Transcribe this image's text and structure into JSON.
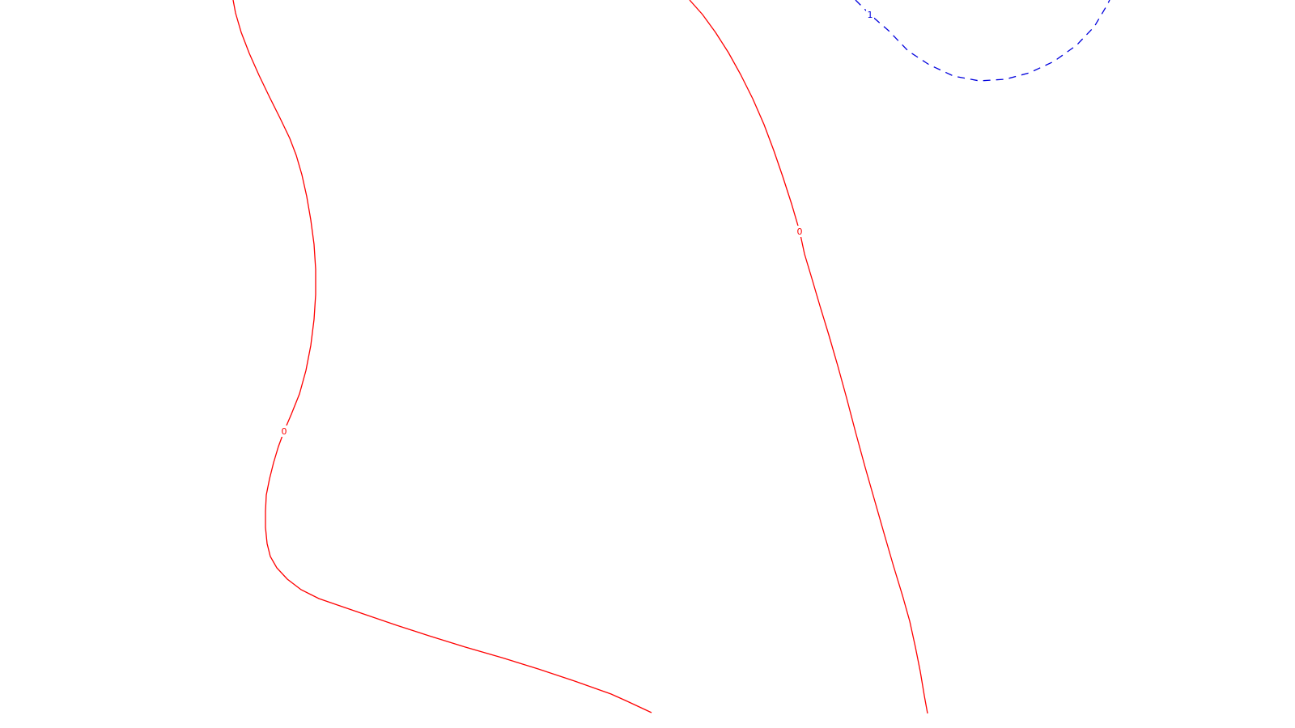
{
  "chart_data": {
    "type": "contour",
    "title": "",
    "xlabel": "",
    "ylabel": "",
    "grid": false,
    "legend": "none",
    "contours": [
      {
        "level": "0",
        "color": "#ff0000",
        "style": "solid",
        "segments": [
          {
            "name": "contour-line-0-left",
            "label_at": 20
          },
          {
            "name": "contour-line-0-right",
            "label_at": 10
          }
        ]
      },
      {
        "level": "1",
        "color": "#0000dd",
        "style": "dashed",
        "segments": [
          {
            "name": "contour-line-1-top-right",
            "label_at": 1
          }
        ]
      }
    ]
  }
}
